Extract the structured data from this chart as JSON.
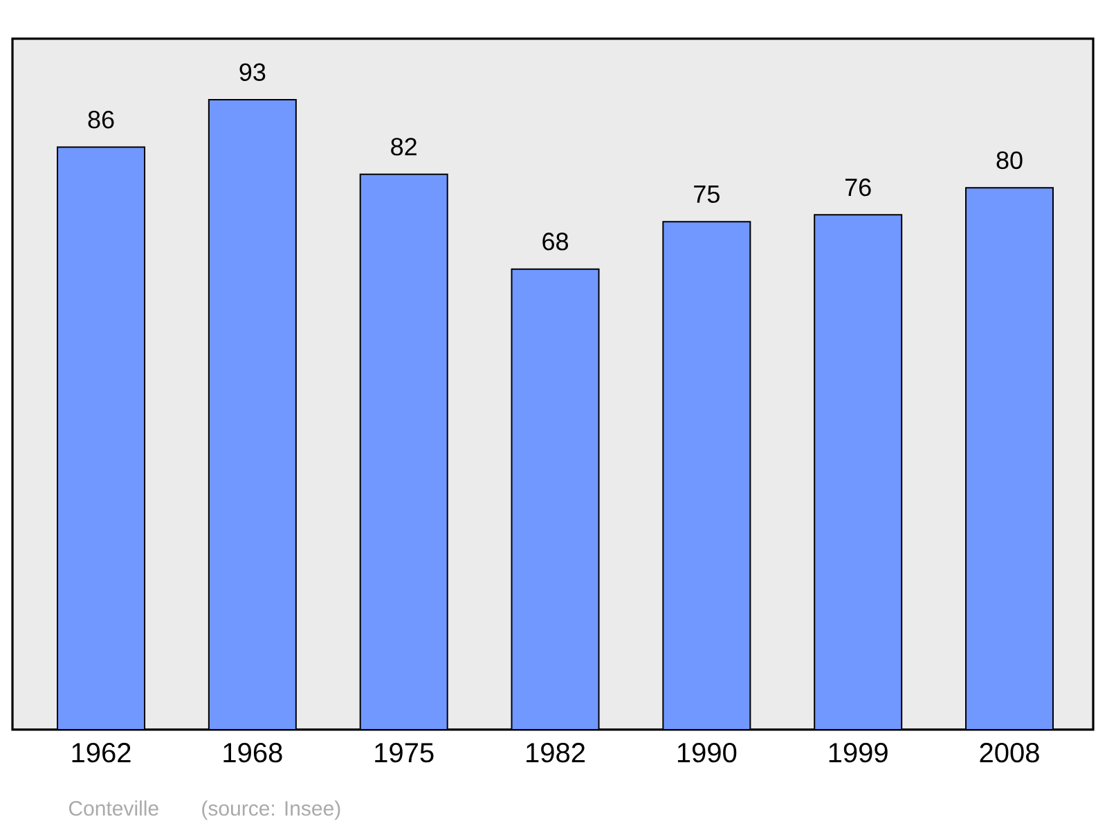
{
  "chart_data": {
    "type": "bar",
    "categories": [
      "1962",
      "1968",
      "1975",
      "1982",
      "1990",
      "1999",
      "2008"
    ],
    "values": [
      86,
      93,
      82,
      68,
      75,
      76,
      80
    ],
    "color": "#7098ff",
    "ylim": [
      0,
      102
    ],
    "data_labels": true,
    "tick_labels": "x",
    "annotations": [
      "Conteville",
      "(source: Insee)"
    ]
  }
}
